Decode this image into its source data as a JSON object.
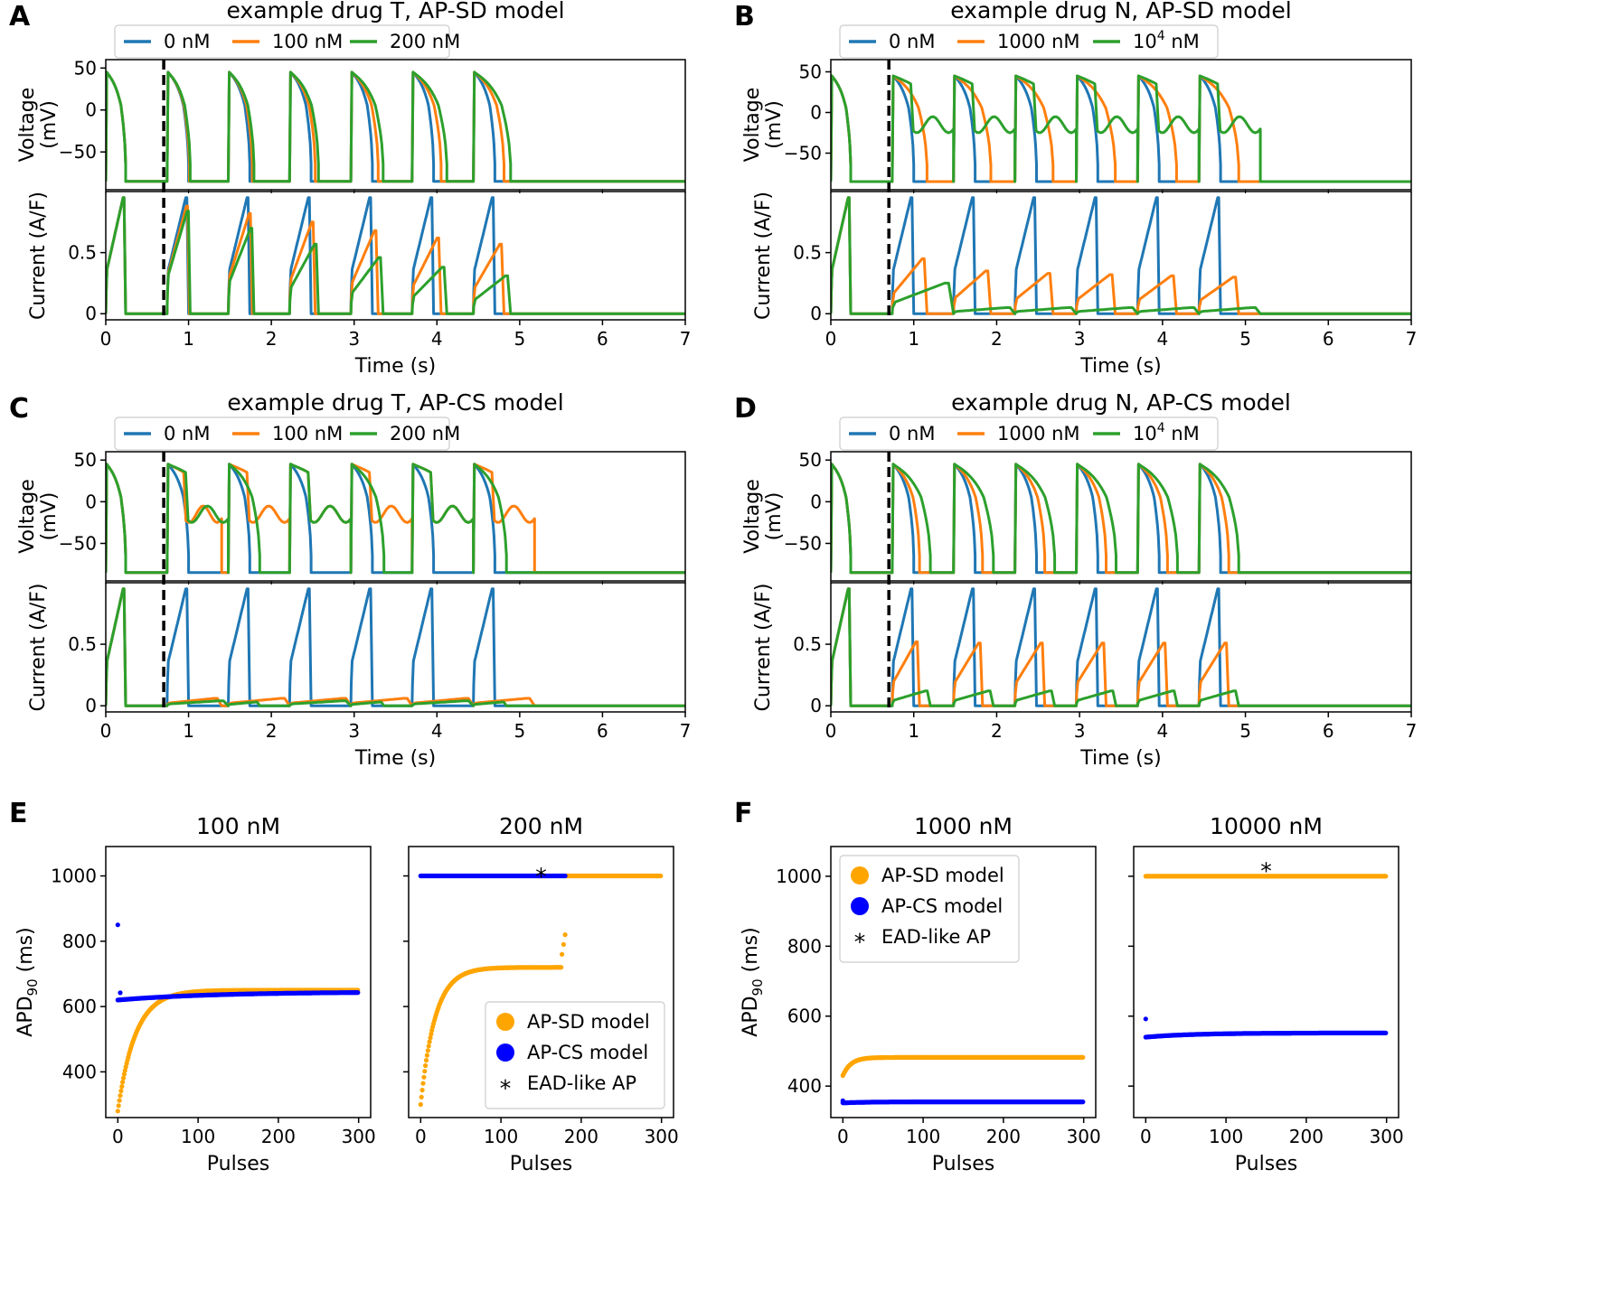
{
  "colors": {
    "blue": "#1f77b4",
    "orange": "#ff7f0e",
    "green": "#2ca02c",
    "sd": "#ffa500",
    "cs": "#0000ff",
    "stim": "#000000"
  },
  "chart_data": [
    {
      "panel": "A",
      "type": "line",
      "title": "example drug T, AP-SD model",
      "xlabel": "Time (s)",
      "ylabel_top": "Voltage (mV)",
      "ylabel_bottom": "Current (A/F)",
      "xlim": [
        0,
        7
      ],
      "xticks": [
        0,
        1,
        2,
        3,
        4,
        5,
        6,
        7
      ],
      "voltage_ylim": [
        -95,
        60
      ],
      "voltage_yticks": [
        50,
        0,
        -50
      ],
      "current_ylim": [
        -0.05,
        1.0
      ],
      "current_yticks": [
        0.0,
        0.5
      ],
      "stimulus_time_s": 0.7,
      "pulse_starts_s": [
        0.0,
        0.74,
        1.48,
        2.22,
        2.96,
        3.7,
        4.44
      ],
      "series": [
        {
          "name": "0 nM",
          "color": "blue",
          "apd_s": [
            0.24,
            0.26,
            0.26,
            0.26,
            0.26,
            0.26,
            0.26
          ],
          "peak_current": [
            0.95,
            0.95,
            0.95,
            0.95,
            0.95,
            0.95,
            0.95
          ]
        },
        {
          "name": "100 nM",
          "color": "orange",
          "apd_s": [
            0.24,
            0.27,
            0.29,
            0.31,
            0.33,
            0.35,
            0.37
          ],
          "peak_current": [
            0.95,
            0.88,
            0.82,
            0.75,
            0.68,
            0.62,
            0.57
          ]
        },
        {
          "name": "200 nM",
          "color": "green",
          "apd_s": [
            0.24,
            0.28,
            0.31,
            0.35,
            0.39,
            0.42,
            0.45
          ],
          "peak_current": [
            0.95,
            0.84,
            0.7,
            0.57,
            0.46,
            0.38,
            0.31
          ]
        }
      ]
    },
    {
      "panel": "B",
      "type": "line",
      "title": "example drug N, AP-SD model",
      "xlabel": "Time (s)",
      "ylabel_top": "Voltage (mV)",
      "ylabel_bottom": "Current (A/F)",
      "xlim": [
        0,
        7
      ],
      "xticks": [
        0,
        1,
        2,
        3,
        4,
        5,
        6,
        7
      ],
      "voltage_ylim": [
        -95,
        65
      ],
      "voltage_yticks": [
        50,
        0,
        -50
      ],
      "current_ylim": [
        -0.05,
        1.0
      ],
      "current_yticks": [
        0.0,
        0.5
      ],
      "stimulus_time_s": 0.7,
      "pulse_starts_s": [
        0.0,
        0.74,
        1.48,
        2.22,
        2.96,
        3.7,
        4.44
      ],
      "series": [
        {
          "name": "0 nM",
          "color": "blue",
          "apd_s": [
            0.24,
            0.26,
            0.26,
            0.26,
            0.26,
            0.26,
            0.26
          ],
          "peak_current": [
            0.95,
            0.95,
            0.95,
            0.95,
            0.95,
            0.95,
            0.95
          ]
        },
        {
          "name": "1000 nM",
          "color": "orange",
          "apd_s": [
            0.24,
            0.42,
            0.45,
            0.46,
            0.47,
            0.47,
            0.48
          ],
          "peak_current": [
            0.95,
            0.45,
            0.35,
            0.33,
            0.32,
            0.31,
            0.3
          ]
        },
        {
          "name": "10^4 nM",
          "color": "green",
          "apd_s": [
            0.24,
            0.74,
            0.74,
            0.74,
            0.74,
            0.74,
            0.74
          ],
          "peak_current": [
            0.95,
            0.25,
            0.05,
            0.05,
            0.05,
            0.05,
            0.05
          ]
        }
      ]
    },
    {
      "panel": "C",
      "type": "line",
      "title": "example drug T, AP-CS model",
      "xlabel": "Time (s)",
      "ylabel_top": "Voltage (mV)",
      "ylabel_bottom": "Current (A/F)",
      "xlim": [
        0,
        7
      ],
      "xticks": [
        0,
        1,
        2,
        3,
        4,
        5,
        6,
        7
      ],
      "voltage_ylim": [
        -95,
        60
      ],
      "voltage_yticks": [
        50,
        0,
        -50
      ],
      "current_ylim": [
        -0.05,
        1.0
      ],
      "current_yticks": [
        0.0,
        0.5
      ],
      "stimulus_time_s": 0.7,
      "pulse_starts_s": [
        0.0,
        0.74,
        1.48,
        2.22,
        2.96,
        3.7,
        4.44
      ],
      "series": [
        {
          "name": "0 nM",
          "color": "blue",
          "apd_s": [
            0.24,
            0.26,
            0.26,
            0.26,
            0.26,
            0.26,
            0.26
          ],
          "peak_current": [
            0.95,
            0.95,
            0.95,
            0.95,
            0.95,
            0.95,
            0.95
          ]
        },
        {
          "name": "100 nM",
          "color": "orange",
          "apd_s": [
            0.24,
            0.66,
            0.74,
            0.74,
            0.74,
            0.74,
            0.74
          ],
          "peak_current": [
            0.95,
            0.06,
            0.06,
            0.06,
            0.06,
            0.06,
            0.06
          ]
        },
        {
          "name": "200 nM",
          "color": "green",
          "apd_s": [
            0.24,
            0.74,
            0.38,
            0.74,
            0.4,
            0.74,
            0.4
          ],
          "peak_current": [
            0.95,
            0.04,
            0.03,
            0.04,
            0.03,
            0.04,
            0.03
          ]
        }
      ]
    },
    {
      "panel": "D",
      "type": "line",
      "title": "example drug N, AP-CS model",
      "xlabel": "Time (s)",
      "ylabel_top": "Voltage (mV)",
      "ylabel_bottom": "Current (A/F)",
      "xlim": [
        0,
        7
      ],
      "xticks": [
        0,
        1,
        2,
        3,
        4,
        5,
        6,
        7
      ],
      "voltage_ylim": [
        -95,
        60
      ],
      "voltage_yticks": [
        50,
        0,
        -50
      ],
      "current_ylim": [
        -0.05,
        1.0
      ],
      "current_yticks": [
        0.0,
        0.5
      ],
      "stimulus_time_s": 0.7,
      "pulse_starts_s": [
        0.0,
        0.74,
        1.48,
        2.22,
        2.96,
        3.7,
        4.44
      ],
      "series": [
        {
          "name": "0 nM",
          "color": "blue",
          "apd_s": [
            0.24,
            0.26,
            0.26,
            0.26,
            0.26,
            0.26,
            0.26
          ],
          "peak_current": [
            0.95,
            0.95,
            0.95,
            0.95,
            0.95,
            0.95,
            0.95
          ]
        },
        {
          "name": "1000 nM",
          "color": "orange",
          "apd_s": [
            0.24,
            0.33,
            0.35,
            0.36,
            0.36,
            0.36,
            0.36
          ],
          "peak_current": [
            0.95,
            0.52,
            0.51,
            0.51,
            0.51,
            0.51,
            0.51
          ]
        },
        {
          "name": "10^4 nM",
          "color": "green",
          "apd_s": [
            0.24,
            0.46,
            0.48,
            0.48,
            0.48,
            0.48,
            0.48
          ],
          "peak_current": [
            0.95,
            0.12,
            0.12,
            0.12,
            0.12,
            0.12,
            0.12
          ]
        }
      ]
    },
    {
      "panel": "E",
      "type": "scatter",
      "subplots": [
        {
          "title": "100 nM",
          "xlabel": "Pulses",
          "ylabel": "APD90 (ms)",
          "xlim": [
            -15,
            315
          ],
          "ylim": [
            260,
            1090
          ],
          "xticks": [
            0,
            100,
            200,
            300
          ],
          "yticks": [
            400,
            600,
            800,
            1000
          ],
          "series": [
            {
              "name": "AP-SD model",
              "color": "sd",
              "start": 280,
              "end": 650,
              "tau": 22,
              "ead_pulses": 0
            },
            {
              "name": "AP-CS model",
              "color": "cs",
              "start": 620,
              "end": 645,
              "tau": 120,
              "ead_pulses": 0,
              "extra_points": [
                [
                  0,
                  850
                ],
                [
                  3,
                  642
                ]
              ]
            }
          ],
          "legend": false
        },
        {
          "title": "200 nM",
          "xlabel": "Pulses",
          "xlim": [
            -15,
            315
          ],
          "ylim": [
            260,
            1090
          ],
          "xticks": [
            0,
            100,
            200,
            300
          ],
          "yticks": [
            400,
            600,
            800,
            1000
          ],
          "series": [
            {
              "name": "AP-SD model",
              "color": "sd",
              "start": 300,
              "end": 720,
              "tau": 18,
              "ead_from": 181,
              "ead_value": 1000,
              "extra_points": [
                [
                  176,
                  760
                ],
                [
                  178,
                  790
                ],
                [
                  180,
                  820
                ]
              ]
            },
            {
              "name": "AP-CS model",
              "color": "cs",
              "ead_value": 1000,
              "ead_to": 180
            }
          ],
          "star_x": 150,
          "star_y": 1030,
          "legend": true,
          "legend_loc": "lower-right"
        }
      ]
    },
    {
      "panel": "F",
      "type": "scatter",
      "subplots": [
        {
          "title": "1000 nM",
          "xlabel": "Pulses",
          "ylabel": "APD90 (ms)",
          "xlim": [
            -15,
            315
          ],
          "ylim": [
            310,
            1085
          ],
          "xticks": [
            0,
            100,
            200,
            300
          ],
          "yticks": [
            400,
            600,
            800,
            1000
          ],
          "series": [
            {
              "name": "AP-SD model",
              "color": "sd",
              "start": 430,
              "end": 482,
              "tau": 10
            },
            {
              "name": "AP-CS model",
              "color": "cs",
              "start": 352,
              "end": 355,
              "tau": 30,
              "extra_points": [
                [
                  0,
                  358
                ]
              ]
            }
          ],
          "legend": true,
          "legend_loc": "upper-left"
        },
        {
          "title": "10000 nM",
          "xlabel": "Pulses",
          "xlim": [
            -15,
            315
          ],
          "ylim": [
            310,
            1085
          ],
          "xticks": [
            0,
            100,
            200,
            300
          ],
          "yticks": [
            400,
            600,
            800,
            1000
          ],
          "series": [
            {
              "name": "AP-SD model",
              "color": "sd",
              "ead_value": 1000,
              "ead_from": 0
            },
            {
              "name": "AP-CS model",
              "color": "cs",
              "start": 540,
              "end": 552,
              "tau": 60,
              "extra_points": [
                [
                  0,
                  592
                ]
              ]
            }
          ],
          "star_x": 150,
          "star_y": 1045,
          "legend": false
        }
      ]
    }
  ],
  "legend_entries": {
    "sd_label": "AP-SD model",
    "cs_label": "AP-CS model",
    "ead_label": "EAD-like AP",
    "star_glyph": "*"
  }
}
